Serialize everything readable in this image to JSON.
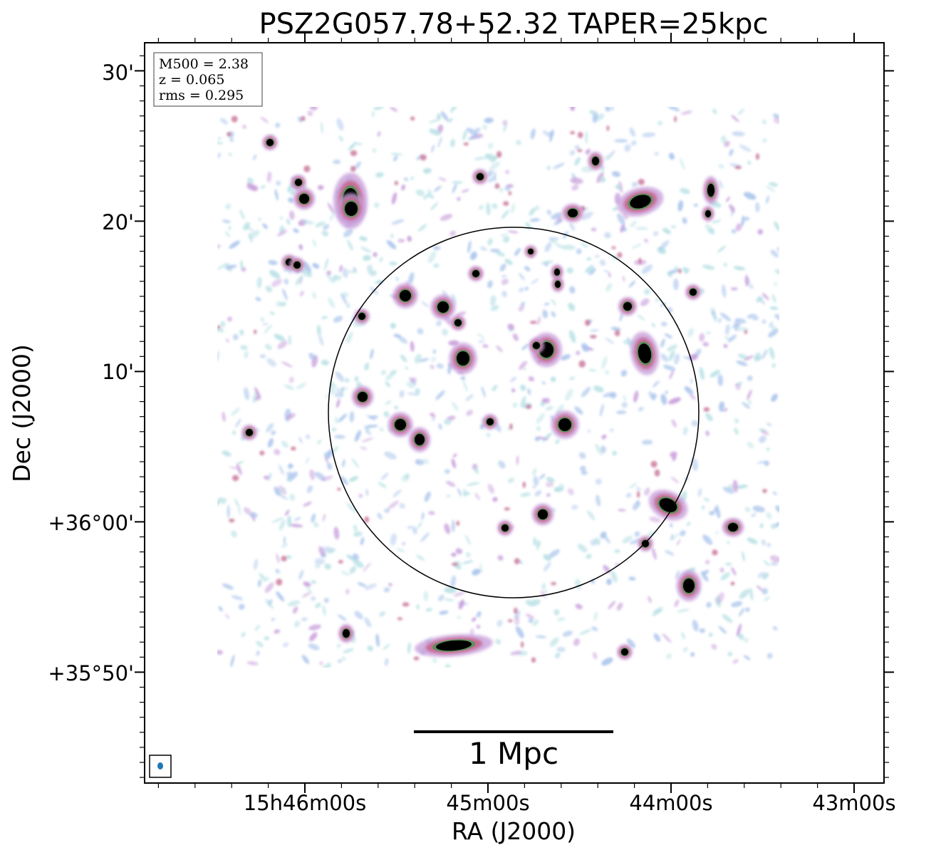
{
  "title": "PSZ2G057.78+52.32 TAPER=25kpc",
  "axes": {
    "xlabel": "RA (J2000)",
    "ylabel": "Dec (J2000)",
    "x_ticks": [
      "15h46m00s",
      "45m00s",
      "44m00s",
      "43m00s"
    ],
    "y_ticks": [
      "30'",
      "20'",
      "10'",
      "+36°00'",
      "+35°50'"
    ]
  },
  "info_box": {
    "line1": "M500 = 2.38",
    "line2": "z = 0.065",
    "line3": "rms = 0.295"
  },
  "scale_bar": {
    "label": "1 Mpc"
  },
  "colors": {
    "faint_emission": "#a9c4ec",
    "faint_emission_alt": "#b7e0e4",
    "mid_emission": "#c9a0dc",
    "moderate_emission": "#c46a92",
    "bright_emission": "#5d8f5a",
    "peak_emission": "#000000",
    "beam": "#1f77b4"
  },
  "beam_icon": "beam-ellipse-icon"
}
